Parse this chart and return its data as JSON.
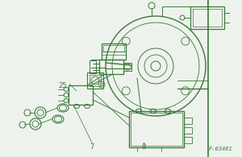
{
  "bg_color": "#eef2ec",
  "line_color": "#3a7a3a",
  "ref_number": "F-03481",
  "labels": {
    "25": [
      0.26,
      0.545
    ],
    "7": [
      0.38,
      0.935
    ],
    "8": [
      0.595,
      0.935
    ]
  },
  "figsize": [
    3.0,
    1.95
  ],
  "dpi": 100
}
